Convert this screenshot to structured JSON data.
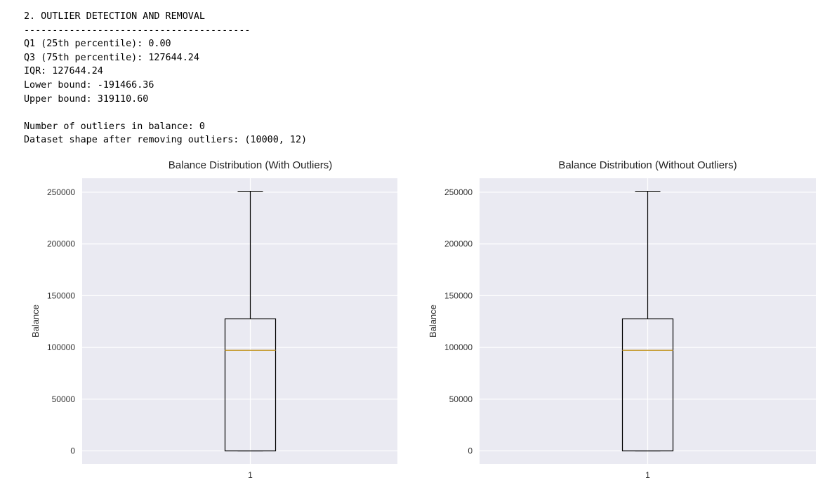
{
  "console": {
    "lines": [
      "2. OUTLIER DETECTION AND REMOVAL",
      "----------------------------------------",
      "Q1 (25th percentile): 0.00",
      "Q3 (75th percentile): 127644.24",
      "IQR: 127644.24",
      "Lower bound: -191466.36",
      "Upper bound: 319110.60",
      "",
      "Number of outliers in balance: 0",
      "Dataset shape after removing outliers: (10000, 12)"
    ]
  },
  "colors": {
    "plot_bg": "#eaeaf2",
    "grid": "#ffffff",
    "box": "#000000",
    "median": "#c8a03c",
    "tick_text": "#333333",
    "title_text": "#222222"
  },
  "chart_data": [
    {
      "type": "box",
      "title": "Balance Distribution (With Outliers)",
      "ylabel": "Balance",
      "xlabel": "",
      "categories": [
        "1"
      ],
      "box": {
        "min": 0,
        "q1": 0,
        "median": 97198.54,
        "q3": 127644.24,
        "max": 250898.09
      },
      "outliers": [],
      "ylim": [
        -12500,
        263500
      ],
      "yticks": [
        0,
        50000,
        100000,
        150000,
        200000,
        250000
      ],
      "ytick_labels": [
        "0",
        "50000",
        "100000",
        "150000",
        "200000",
        "250000"
      ],
      "grid": true
    },
    {
      "type": "box",
      "title": "Balance Distribution (Without Outliers)",
      "ylabel": "Balance",
      "xlabel": "",
      "categories": [
        "1"
      ],
      "box": {
        "min": 0,
        "q1": 0,
        "median": 97198.54,
        "q3": 127644.24,
        "max": 250898.09
      },
      "outliers": [],
      "ylim": [
        -12500,
        263500
      ],
      "yticks": [
        0,
        50000,
        100000,
        150000,
        200000,
        250000
      ],
      "ytick_labels": [
        "0",
        "50000",
        "100000",
        "150000",
        "200000",
        "250000"
      ],
      "grid": true
    }
  ]
}
